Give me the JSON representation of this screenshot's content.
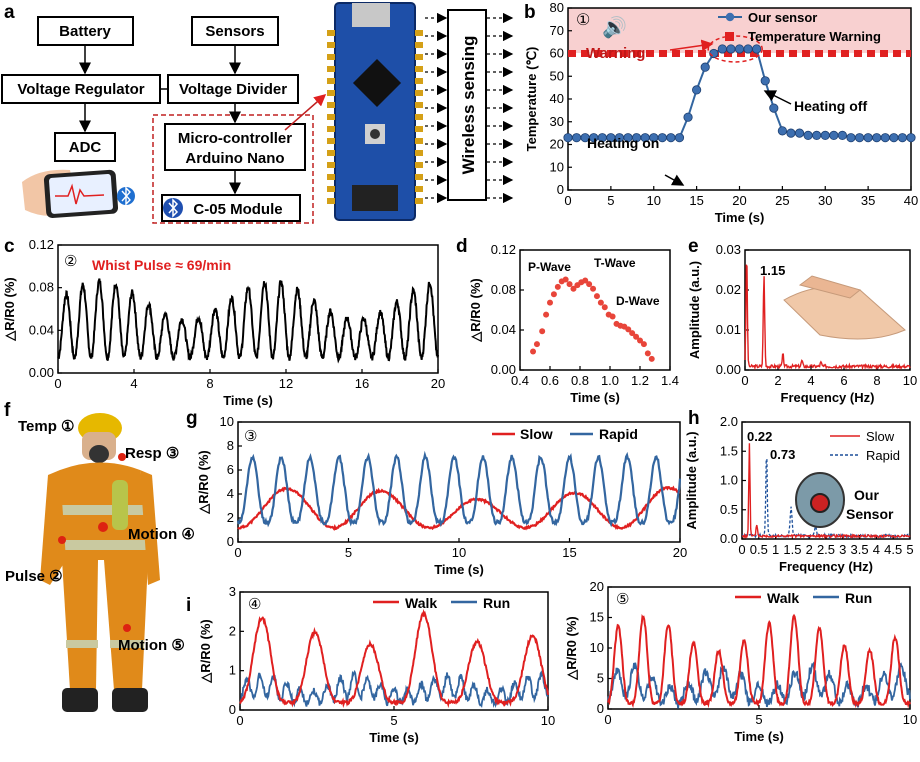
{
  "panel_letters": {
    "a": "a",
    "b": "b",
    "c": "c",
    "d": "d",
    "e": "e",
    "f": "f",
    "g": "g",
    "h": "h",
    "i": "i"
  },
  "colors": {
    "red": "#e02020",
    "blue": "#3366a0",
    "black": "#000000",
    "board": "#1e4fa8",
    "skin": "#f0c8a8"
  },
  "block_diagram": {
    "battery": "Battery",
    "sensors": "Sensors",
    "voltage_regulator": "Voltage Regulator",
    "voltage_divider": "Voltage Divider",
    "adc": "ADC",
    "mcu_line1": "Micro-controller",
    "mcu_line2": "Arduino Nano",
    "module": "C-05 Module",
    "wireless": "Wireless sensing"
  },
  "firefighter": {
    "temp": "Temp ①",
    "resp": "Resp ③",
    "motion4": "Motion ④",
    "pulse": "Pulse ②",
    "motion5": "Motion ⑤"
  },
  "chart_data": [
    {
      "id": "b",
      "type": "line",
      "marker": "①",
      "xlabel": "Time (s)",
      "ylabel": "Temperature (℃)",
      "xlim": [
        0,
        40
      ],
      "ylim": [
        0,
        80
      ],
      "xticks": [
        "0",
        "5",
        "10",
        "15",
        "20",
        "25",
        "30",
        "35",
        "40"
      ],
      "yticks": [
        "0",
        "10",
        "20",
        "30",
        "40",
        "50",
        "60",
        "70",
        "80"
      ],
      "legend": [
        "Our sensor",
        "Temperature Warning"
      ],
      "threshold": 60,
      "annotations": {
        "warning": "Warning",
        "heating_on": "Heating on",
        "heating_off": "Heating off"
      },
      "series": [
        {
          "name": "Our sensor",
          "x": [
            0,
            1,
            2,
            3,
            4,
            5,
            6,
            7,
            8,
            9,
            10,
            11,
            12,
            13,
            14,
            15,
            16,
            17,
            18,
            19,
            20,
            21,
            22,
            23,
            24,
            25,
            26,
            27,
            28,
            29,
            30,
            31,
            32,
            33,
            34,
            35,
            36,
            37,
            38,
            39,
            40
          ],
          "y": [
            23,
            23,
            23,
            23,
            23,
            23,
            23,
            23,
            23,
            23,
            23,
            23,
            23,
            23,
            32,
            44,
            54,
            60,
            62,
            62,
            62,
            62,
            62,
            48,
            36,
            26,
            25,
            25,
            24,
            24,
            24,
            24,
            24,
            23,
            23,
            23,
            23,
            23,
            23,
            23,
            23
          ]
        }
      ]
    },
    {
      "id": "c",
      "type": "line",
      "marker": "②",
      "annotation": "Whist Pulse ≈ 69/min",
      "xlabel": "Time (s)",
      "ylabel": "△R/R0 (%)",
      "xlim": [
        0,
        20
      ],
      "ylim": [
        -0.005,
        0.12
      ],
      "xticks": [
        "0",
        "4",
        "8",
        "12",
        "16",
        "20"
      ],
      "yticks": [
        "0.00",
        "0.04",
        "0.08",
        "0.12"
      ],
      "series": [
        {
          "name": "pulse",
          "rate_hz": 1.15,
          "baseline": 0.01,
          "peak": 0.085
        }
      ]
    },
    {
      "id": "d",
      "type": "scatter",
      "xlabel": "Time (s)",
      "ylabel": "△R/R0 (%)",
      "xlim": [
        0.3,
        1.45
      ],
      "ylim": [
        -0.01,
        0.12
      ],
      "xticks": [
        "0.4",
        "0.6",
        "0.8",
        "1.0",
        "1.2",
        "1.4"
      ],
      "yticks": [
        "0.00",
        "0.04",
        "0.08",
        "0.12"
      ],
      "labels": {
        "p": "P-Wave",
        "t": "T-Wave",
        "d": "D-Wave"
      },
      "series": [
        {
          "name": "pulse",
          "x": [
            0.4,
            0.43,
            0.47,
            0.5,
            0.53,
            0.56,
            0.59,
            0.62,
            0.65,
            0.68,
            0.71,
            0.74,
            0.77,
            0.8,
            0.83,
            0.86,
            0.89,
            0.92,
            0.95,
            0.98,
            1.01,
            1.04,
            1.07,
            1.1,
            1.13,
            1.16,
            1.19,
            1.22,
            1.25,
            1.28,
            1.31
          ],
          "y": [
            0.01,
            0.018,
            0.032,
            0.05,
            0.063,
            0.072,
            0.08,
            0.086,
            0.088,
            0.083,
            0.078,
            0.082,
            0.085,
            0.087,
            0.083,
            0.078,
            0.07,
            0.063,
            0.058,
            0.05,
            0.048,
            0.04,
            0.038,
            0.037,
            0.034,
            0.03,
            0.026,
            0.022,
            0.018,
            0.008,
            0.002
          ]
        }
      ]
    },
    {
      "id": "e",
      "type": "line",
      "xlabel": "Frequency (Hz)",
      "ylabel": "Amplitude (a.u.)",
      "xlim": [
        0,
        10
      ],
      "ylim": [
        0,
        0.03
      ],
      "xticks": [
        "0",
        "2",
        "4",
        "6",
        "8",
        "10"
      ],
      "yticks": [
        "0.00",
        "0.01",
        "0.02",
        "0.03"
      ],
      "peak_label": "1.15",
      "series": [
        {
          "name": "FFT",
          "peaks": [
            [
              0.1,
              0.028
            ],
            [
              1.15,
              0.023
            ],
            [
              2.3,
              0.003
            ],
            [
              3.45,
              0.0015
            ],
            [
              4.6,
              0.001
            ]
          ]
        }
      ]
    },
    {
      "id": "g",
      "type": "line",
      "marker": "③",
      "xlabel": "Time (s)",
      "ylabel": "△R/R0 (%)",
      "xlim": [
        0,
        21
      ],
      "ylim": [
        -1,
        10
      ],
      "xticks": [
        "0",
        "5",
        "10",
        "15",
        "20"
      ],
      "yticks": [
        "0",
        "2",
        "4",
        "6",
        "8",
        "10"
      ],
      "legend": [
        "Slow",
        "Rapid"
      ],
      "series": [
        {
          "name": "Slow",
          "freq_hz": 0.22,
          "amp": 3.7
        },
        {
          "name": "Rapid",
          "freq_hz": 0.73,
          "amp": 6.8
        }
      ]
    },
    {
      "id": "h",
      "type": "line",
      "xlabel": "Frequency (Hz)",
      "ylabel": "Amplitude (a.u.)",
      "xlim": [
        0,
        5
      ],
      "ylim": [
        0,
        2.0
      ],
      "xticks": [
        "0",
        "0.5",
        "1",
        "1.5",
        "2",
        "2.5",
        "3",
        "3.5",
        "4",
        "4.5",
        "5"
      ],
      "yticks": [
        "0.0",
        "0.5",
        "1.0",
        "1.5",
        "2.0"
      ],
      "legend": [
        "Slow",
        "Rapid"
      ],
      "peak_labels": [
        "0.22",
        "0.73"
      ],
      "inset_label_1": "Our",
      "inset_label_2": "Sensor",
      "series": [
        {
          "name": "Slow",
          "peak": [
            0.22,
            1.6
          ]
        },
        {
          "name": "Rapid",
          "peak": [
            0.73,
            1.5
          ]
        }
      ]
    },
    {
      "id": "i4",
      "type": "line",
      "marker": "④",
      "xlabel": "Time (s)",
      "ylabel": "△R/R0 (%)",
      "xlim": [
        0,
        10
      ],
      "ylim": [
        -0.2,
        3
      ],
      "xticks": [
        "0",
        "5",
        "10"
      ],
      "yticks": [
        "0",
        "1",
        "2",
        "3"
      ],
      "legend": [
        "Walk",
        "Run"
      ],
      "series": [
        {
          "name": "Walk",
          "freq_hz": 0.57,
          "amp": 2.4
        },
        {
          "name": "Run",
          "freq_hz": 2.3,
          "amp": 1.1
        }
      ]
    },
    {
      "id": "i5",
      "type": "line",
      "marker": "⑤",
      "xlabel": "Time (s)",
      "ylabel": "△R/R0 (%)",
      "xlim": [
        0,
        10
      ],
      "ylim": [
        -1,
        20
      ],
      "xticks": [
        "0",
        "5",
        "10"
      ],
      "yticks": [
        "0",
        "5",
        "10",
        "15",
        "20"
      ],
      "legend": [
        "Walk",
        "Run"
      ],
      "series": [
        {
          "name": "Walk",
          "freq_hz": 1.2,
          "amp": 15
        },
        {
          "name": "Run",
          "freq_hz": 1.7,
          "amp": 9
        }
      ]
    }
  ]
}
